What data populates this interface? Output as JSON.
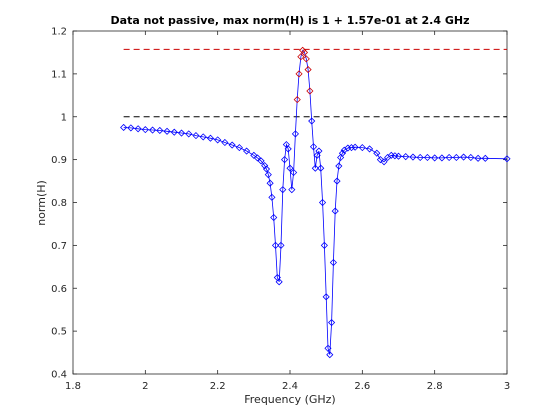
{
  "chart_data": {
    "type": "line",
    "title": "Data not passive, max norm(H) is 1 + 1.57e-01 at 2.4 GHz",
    "xlabel": "Frequency (GHz)",
    "ylabel": "norm(H)",
    "xlim": [
      1.8,
      3.0
    ],
    "ylim": [
      0.4,
      1.2
    ],
    "xticks": [
      1.8,
      2.0,
      2.2,
      2.4,
      2.6,
      2.8,
      3.0
    ],
    "xtick_labels": [
      "1.8",
      "2",
      "2.2",
      "2.4",
      "2.6",
      "2.8",
      "3"
    ],
    "yticks": [
      0.4,
      0.5,
      0.6,
      0.7,
      0.8,
      0.9,
      1.0,
      1.1,
      1.2
    ],
    "ytick_labels": [
      "0.4",
      "0.5",
      "0.6",
      "0.7",
      "0.8",
      "0.9",
      "1",
      "1.1",
      "1.2"
    ],
    "grid": false,
    "colors": {
      "line": "#0000ff",
      "passive_markers": "#0000ff",
      "violation_markers": "#cc0000",
      "unity_line": "#000000",
      "max_line": "#cc0000"
    },
    "reference_lines": [
      {
        "y": 1.0,
        "x_range": [
          1.94,
          3.0
        ],
        "style": "dashed",
        "color": "#000000"
      },
      {
        "y": 1.157,
        "x_range": [
          1.94,
          3.0
        ],
        "style": "dashed",
        "color": "#cc0000"
      }
    ],
    "series": [
      {
        "marker": "diamond",
        "x": [
          1.94,
          1.96,
          1.98,
          2.0,
          2.02,
          2.04,
          2.06,
          2.08,
          2.1,
          2.12,
          2.14,
          2.16,
          2.18,
          2.2,
          2.22,
          2.24,
          2.26,
          2.28,
          2.3,
          2.31,
          2.32,
          2.33,
          2.335,
          2.34,
          2.345,
          2.35,
          2.355,
          2.36,
          2.365,
          2.37,
          2.375,
          2.38,
          2.385,
          2.39,
          2.395,
          2.4,
          2.405,
          2.41,
          2.415,
          2.42,
          2.425,
          2.43,
          2.435,
          2.44,
          2.445,
          2.45,
          2.455,
          2.46,
          2.465,
          2.47,
          2.475,
          2.48,
          2.485,
          2.49,
          2.495,
          2.5,
          2.505,
          2.51,
          2.515,
          2.52,
          2.525,
          2.53,
          2.535,
          2.54,
          2.545,
          2.55,
          2.56,
          2.57,
          2.58,
          2.6,
          2.62,
          2.64,
          2.65,
          2.66,
          2.67,
          2.68,
          2.69,
          2.7,
          2.72,
          2.74,
          2.76,
          2.78,
          2.8,
          2.82,
          2.84,
          2.86,
          2.88,
          2.9,
          2.92,
          2.94,
          3.0
        ],
        "y": [
          0.975,
          0.974,
          0.972,
          0.97,
          0.969,
          0.968,
          0.966,
          0.964,
          0.962,
          0.96,
          0.956,
          0.953,
          0.95,
          0.946,
          0.94,
          0.934,
          0.928,
          0.92,
          0.91,
          0.904,
          0.897,
          0.886,
          0.878,
          0.865,
          0.845,
          0.812,
          0.765,
          0.7,
          0.625,
          0.615,
          0.7,
          0.83,
          0.9,
          0.935,
          0.925,
          0.88,
          0.83,
          0.87,
          0.96,
          1.04,
          1.1,
          1.14,
          1.155,
          1.15,
          1.135,
          1.11,
          1.06,
          0.99,
          0.93,
          0.88,
          0.91,
          0.92,
          0.88,
          0.8,
          0.7,
          0.58,
          0.46,
          0.445,
          0.52,
          0.66,
          0.78,
          0.85,
          0.885,
          0.905,
          0.915,
          0.922,
          0.927,
          0.928,
          0.929,
          0.928,
          0.925,
          0.915,
          0.9,
          0.895,
          0.905,
          0.91,
          0.909,
          0.908,
          0.907,
          0.906,
          0.905,
          0.905,
          0.904,
          0.904,
          0.905,
          0.905,
          0.906,
          0.905,
          0.903,
          0.903,
          0.902
        ]
      }
    ]
  }
}
